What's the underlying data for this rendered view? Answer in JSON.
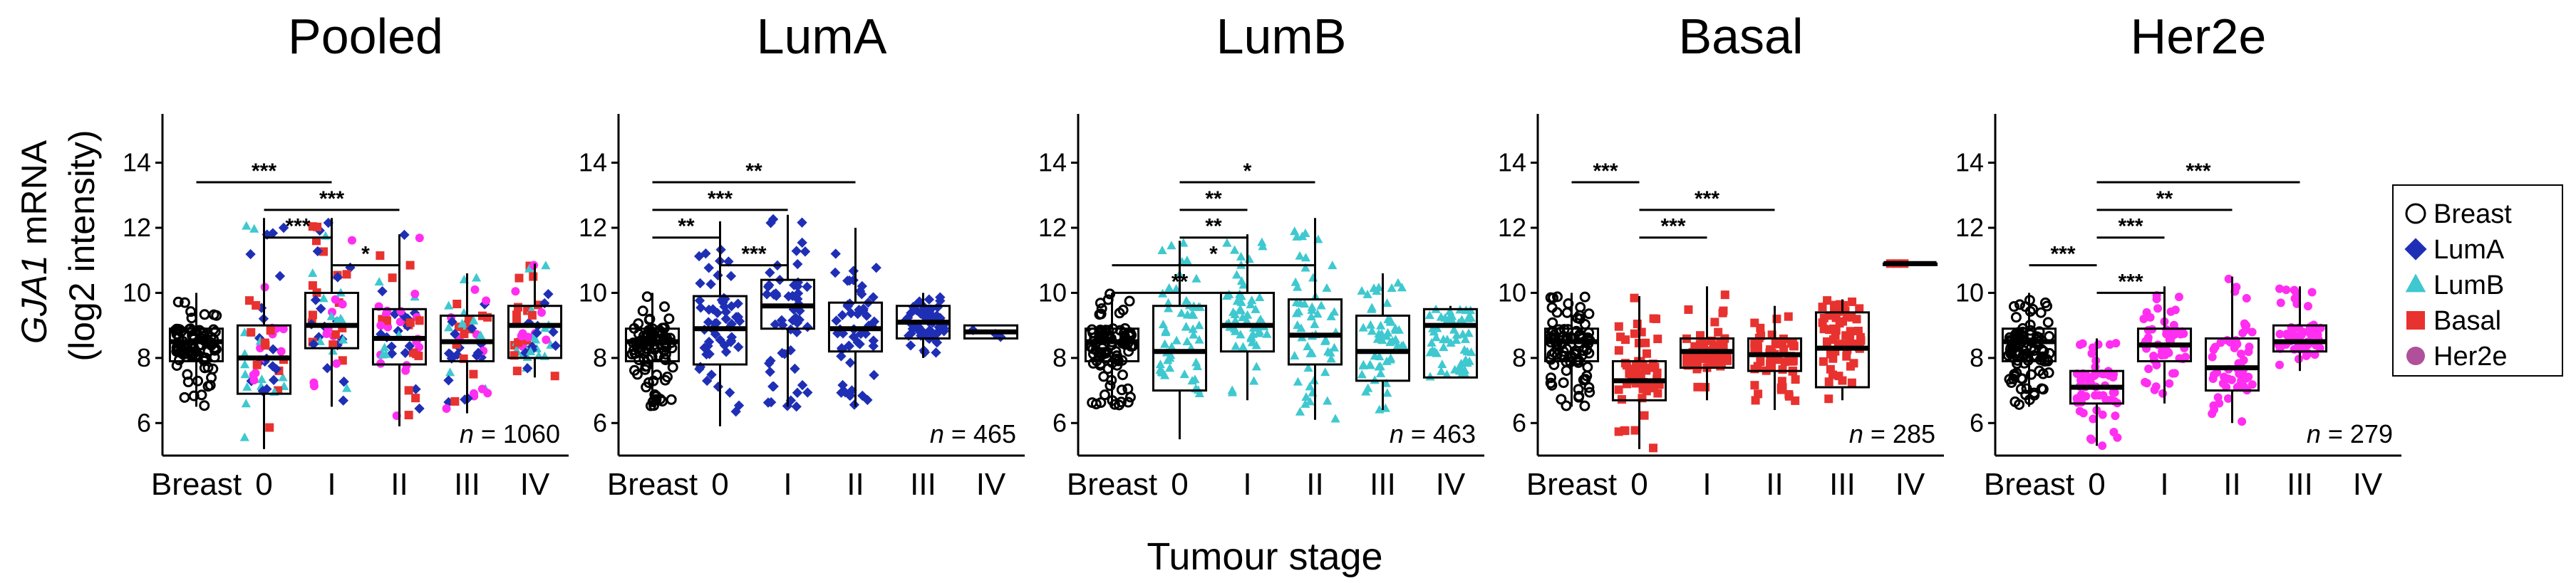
{
  "figure": {
    "x_axis_label": "Tumour stage",
    "y_axis_label_gene": "GJA1",
    "y_axis_label_rest": " mRNA",
    "y_axis_label_line2": "(log2 intensity)"
  },
  "legend": {
    "items": [
      {
        "label": "Breast",
        "color": "#000000",
        "shape": "circle-open"
      },
      {
        "label": "LumA",
        "color": "#1f2fb5",
        "shape": "diamond"
      },
      {
        "label": "LumB",
        "color": "#3fc8cf",
        "shape": "triangle"
      },
      {
        "label": "Basal",
        "color": "#e8322f",
        "shape": "square"
      },
      {
        "label": "Her2e",
        "color": "#b0509a",
        "shape": "circle"
      }
    ]
  },
  "chart_data": [
    {
      "type": "box",
      "title": "Pooled",
      "categories": [
        "Breast",
        "0",
        "I",
        "II",
        "III",
        "IV"
      ],
      "ylim": [
        5,
        15.5
      ],
      "yticks": [
        6,
        8,
        10,
        12,
        14
      ],
      "n_label": "n = 1060",
      "point_color": "mixed",
      "boxes": [
        {
          "q1": 7.9,
          "median": 8.5,
          "q3": 8.9,
          "lo": 6.5,
          "hi": 10.0
        },
        {
          "q1": 6.9,
          "median": 8.0,
          "q3": 9.0,
          "lo": 5.2,
          "hi": 12.3
        },
        {
          "q1": 8.3,
          "median": 9.0,
          "q3": 10.0,
          "lo": 6.5,
          "hi": 12.3
        },
        {
          "q1": 7.8,
          "median": 8.6,
          "q3": 9.5,
          "lo": 5.9,
          "hi": 11.8
        },
        {
          "q1": 7.9,
          "median": 8.5,
          "q3": 9.3,
          "lo": 6.3,
          "hi": 10.6
        },
        {
          "q1": 8.0,
          "median": 9.0,
          "q3": 9.6,
          "lo": 7.4,
          "hi": 10.9
        }
      ],
      "significance": [
        {
          "from": "Breast",
          "to": "I",
          "label": "***"
        },
        {
          "from": "0",
          "to": "II",
          "label": "***"
        },
        {
          "from": "0",
          "to": "I",
          "label": "***"
        },
        {
          "from": "I",
          "to": "II",
          "label": "*"
        }
      ]
    },
    {
      "type": "box",
      "title": "LumA",
      "categories": [
        "Breast",
        "0",
        "I",
        "II",
        "III",
        "IV"
      ],
      "ylim": [
        5,
        15.5
      ],
      "yticks": [
        6,
        8,
        10,
        12,
        14
      ],
      "n_label": "n = 465",
      "point_color": "#1f2fb5",
      "boxes": [
        {
          "q1": 7.9,
          "median": 8.5,
          "q3": 8.9,
          "lo": 6.5,
          "hi": 10.0
        },
        {
          "q1": 7.8,
          "median": 8.9,
          "q3": 9.9,
          "lo": 5.9,
          "hi": 12.2
        },
        {
          "q1": 8.9,
          "median": 9.6,
          "q3": 10.4,
          "lo": 6.5,
          "hi": 12.4
        },
        {
          "q1": 8.2,
          "median": 8.9,
          "q3": 9.7,
          "lo": 6.5,
          "hi": 12.0
        },
        {
          "q1": 8.6,
          "median": 9.1,
          "q3": 9.6,
          "lo": 8.0,
          "hi": 10.0
        },
        {
          "q1": 8.6,
          "median": 8.8,
          "q3": 9.0,
          "lo": 8.6,
          "hi": 9.0
        }
      ],
      "significance": [
        {
          "from": "Breast",
          "to": "II",
          "label": "**"
        },
        {
          "from": "Breast",
          "to": "I",
          "label": "***"
        },
        {
          "from": "Breast",
          "to": "0",
          "label": "**"
        },
        {
          "from": "0",
          "to": "I",
          "label": "***"
        }
      ]
    },
    {
      "type": "box",
      "title": "LumB",
      "categories": [
        "Breast",
        "0",
        "I",
        "II",
        "III",
        "IV"
      ],
      "ylim": [
        5,
        15.5
      ],
      "yticks": [
        6,
        8,
        10,
        12,
        14
      ],
      "n_label": "n = 463",
      "point_color": "#3fc8cf",
      "boxes": [
        {
          "q1": 7.9,
          "median": 8.5,
          "q3": 8.9,
          "lo": 6.5,
          "hi": 10.0
        },
        {
          "q1": 7.0,
          "median": 8.2,
          "q3": 9.6,
          "lo": 5.5,
          "hi": 11.6
        },
        {
          "q1": 8.2,
          "median": 9.0,
          "q3": 10.0,
          "lo": 6.7,
          "hi": 11.8
        },
        {
          "q1": 7.8,
          "median": 8.7,
          "q3": 9.8,
          "lo": 6.1,
          "hi": 12.3
        },
        {
          "q1": 7.3,
          "median": 8.2,
          "q3": 9.3,
          "lo": 6.4,
          "hi": 10.6
        },
        {
          "q1": 7.4,
          "median": 9.0,
          "q3": 9.5,
          "lo": 7.4,
          "hi": 9.6
        }
      ],
      "significance": [
        {
          "from": "0",
          "to": "II",
          "label": "*"
        },
        {
          "from": "0",
          "to": "I",
          "label": "**"
        },
        {
          "from": "0",
          "to": "I",
          "label": "**"
        },
        {
          "from": "Breast",
          "to": "II",
          "label": "*"
        },
        {
          "from": "Breast",
          "to": "I",
          "label": "**"
        }
      ]
    },
    {
      "type": "box",
      "title": "Basal",
      "categories": [
        "Breast",
        "0",
        "I",
        "II",
        "III",
        "IV"
      ],
      "ylim": [
        5,
        15.5
      ],
      "yticks": [
        6,
        8,
        10,
        12,
        14
      ],
      "n_label": "n = 285",
      "point_color": "#e8322f",
      "boxes": [
        {
          "q1": 7.9,
          "median": 8.5,
          "q3": 8.9,
          "lo": 6.5,
          "hi": 10.0
        },
        {
          "q1": 6.7,
          "median": 7.3,
          "q3": 7.9,
          "lo": 5.2,
          "hi": 9.9
        },
        {
          "q1": 7.7,
          "median": 8.2,
          "q3": 8.6,
          "lo": 6.7,
          "hi": 10.2
        },
        {
          "q1": 7.6,
          "median": 8.1,
          "q3": 8.6,
          "lo": 6.4,
          "hi": 9.6
        },
        {
          "q1": 7.1,
          "median": 8.3,
          "q3": 9.4,
          "lo": 6.7,
          "hi": 9.8
        },
        {
          "q1": 10.9,
          "median": 10.9,
          "q3": 10.9,
          "lo": 10.9,
          "hi": 10.9
        }
      ],
      "significance": [
        {
          "from": "Breast",
          "to": "0",
          "label": "***"
        },
        {
          "from": "0",
          "to": "II",
          "label": "***"
        },
        {
          "from": "0",
          "to": "I",
          "label": "***"
        }
      ]
    },
    {
      "type": "box",
      "title": "Her2e",
      "categories": [
        "Breast",
        "0",
        "I",
        "II",
        "III",
        "IV"
      ],
      "ylim": [
        5,
        15.5
      ],
      "yticks": [
        6,
        8,
        10,
        12,
        14
      ],
      "n_label": "n = 279",
      "point_color": "#ff2ef0",
      "boxes": [
        {
          "q1": 7.9,
          "median": 8.5,
          "q3": 8.9,
          "lo": 6.5,
          "hi": 10.0
        },
        {
          "q1": 6.6,
          "median": 7.1,
          "q3": 7.6,
          "lo": 5.3,
          "hi": 8.6
        },
        {
          "q1": 7.9,
          "median": 8.4,
          "q3": 8.9,
          "lo": 6.6,
          "hi": 10.2
        },
        {
          "q1": 7.0,
          "median": 7.7,
          "q3": 8.6,
          "lo": 6.0,
          "hi": 10.5
        },
        {
          "q1": 8.2,
          "median": 8.5,
          "q3": 9.0,
          "lo": 7.6,
          "hi": 10.2
        }
      ],
      "significance": [
        {
          "from": "0",
          "to": "III",
          "label": "***"
        },
        {
          "from": "0",
          "to": "II",
          "label": "**"
        },
        {
          "from": "0",
          "to": "I",
          "label": "***"
        },
        {
          "from": "Breast",
          "to": "0",
          "label": "***"
        },
        {
          "from": "0",
          "to": "I",
          "label": "***"
        }
      ]
    }
  ]
}
